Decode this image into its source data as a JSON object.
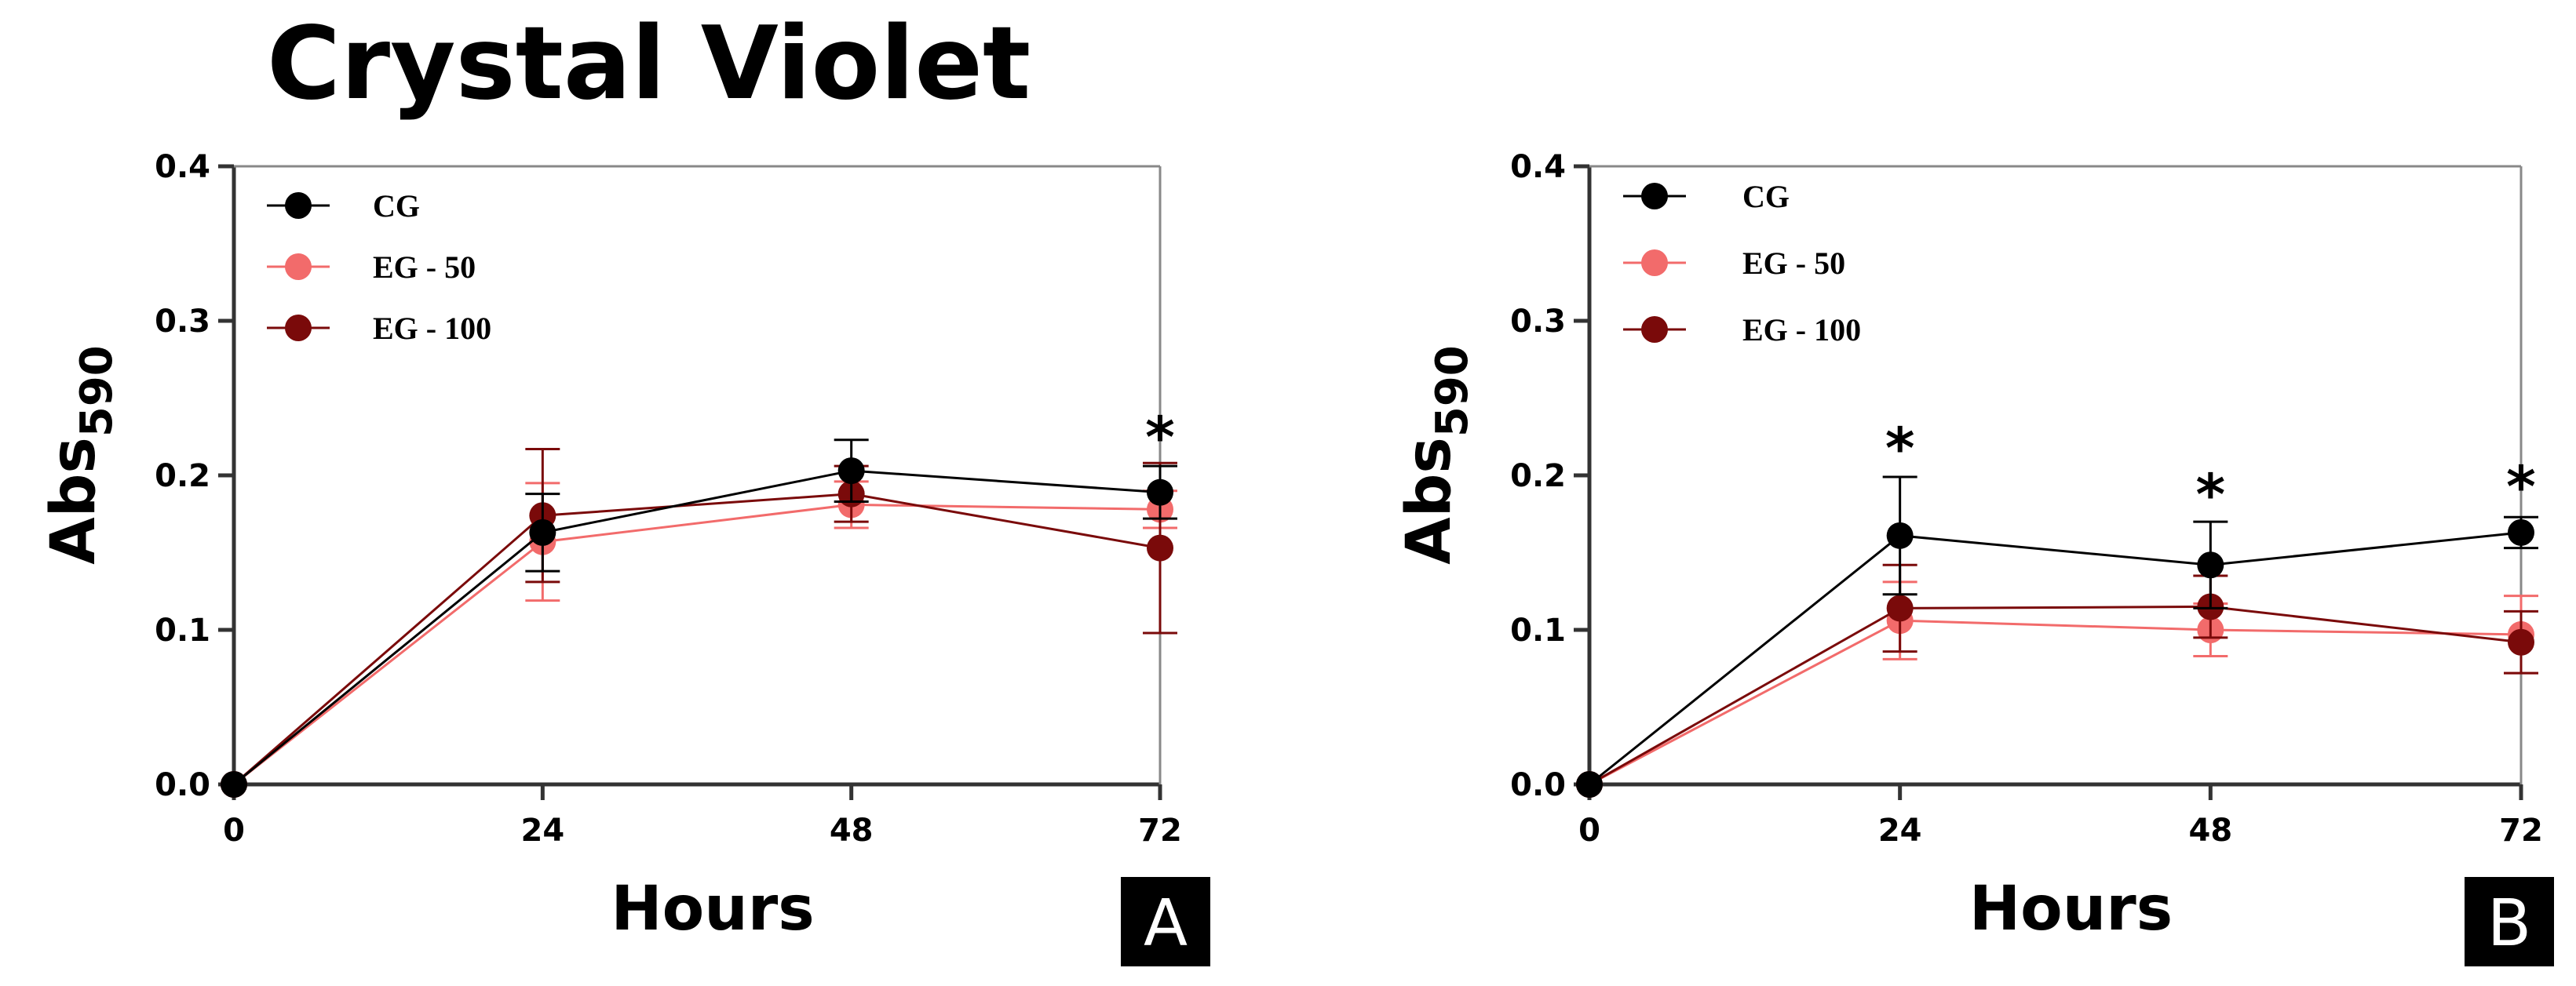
{
  "figure": {
    "title": "Crystal Violet"
  },
  "colors": {
    "CG": "#000000",
    "EG - 50": "#f26b6b",
    "EG - 100": "#7a0a0a",
    "axis": "#333333"
  },
  "chart_data": [
    {
      "type": "line",
      "panel_label": "A",
      "title": "Crystal Violet",
      "xlabel": "Hours",
      "ylabel_main": "Abs",
      "ylabel_sub": "590",
      "x": [
        0,
        24,
        48,
        72
      ],
      "xlim": [
        0,
        72
      ],
      "ylim": [
        0,
        0.4
      ],
      "x_ticks": [
        "0",
        "24",
        "48",
        "72"
      ],
      "y_ticks": [
        "0.0",
        "0.1",
        "0.2",
        "0.3",
        "0.4"
      ],
      "legend_position": "top-left",
      "grid": false,
      "series": [
        {
          "name": "CG",
          "values": [
            0,
            0.163,
            0.203,
            0.189
          ],
          "errors": [
            0,
            0.025,
            0.02,
            0.017
          ]
        },
        {
          "name": "EG - 50",
          "values": [
            0,
            0.157,
            0.181,
            0.178
          ],
          "errors": [
            0,
            0.038,
            0.015,
            0.012
          ]
        },
        {
          "name": "EG - 100",
          "values": [
            0,
            0.174,
            0.188,
            0.153
          ],
          "errors": [
            0,
            0.043,
            0.018,
            0.055
          ]
        }
      ],
      "annotations": [
        {
          "x": 72,
          "text": "*",
          "y": 0.222
        }
      ]
    },
    {
      "type": "line",
      "panel_label": "B",
      "xlabel": "Hours",
      "ylabel_main": "Abs",
      "ylabel_sub": "590",
      "x": [
        0,
        24,
        48,
        72
      ],
      "xlim": [
        0,
        72
      ],
      "ylim": [
        0,
        0.4
      ],
      "x_ticks": [
        "0",
        "24",
        "48",
        "72"
      ],
      "y_ticks": [
        "0.0",
        "0.1",
        "0.2",
        "0.3",
        "0.4"
      ],
      "legend_position": "top-left",
      "grid": false,
      "series": [
        {
          "name": "CG",
          "values": [
            0,
            0.161,
            0.142,
            0.163
          ],
          "errors": [
            0,
            0.038,
            0.028,
            0.01
          ]
        },
        {
          "name": "EG - 50",
          "values": [
            0,
            0.106,
            0.1,
            0.097
          ],
          "errors": [
            0,
            0.025,
            0.017,
            0.025
          ]
        },
        {
          "name": "EG - 100",
          "values": [
            0,
            0.114,
            0.115,
            0.092
          ],
          "errors": [
            0,
            0.028,
            0.02,
            0.02
          ]
        }
      ],
      "annotations": [
        {
          "x": 24,
          "text": "*",
          "y": 0.215
        },
        {
          "x": 48,
          "text": "*",
          "y": 0.185
        },
        {
          "x": 72,
          "text": "*",
          "y": 0.19
        }
      ]
    }
  ]
}
